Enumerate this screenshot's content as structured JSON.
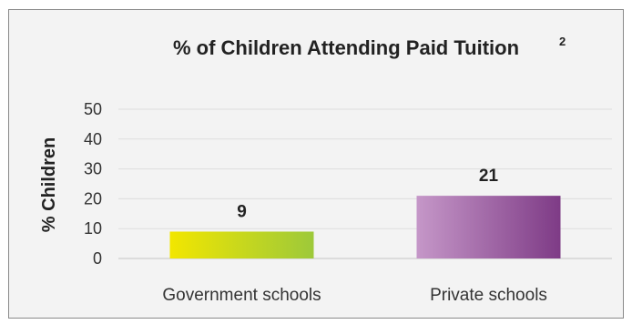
{
  "chart_data": {
    "type": "bar",
    "title": "% of Children Attending Paid Tuition",
    "title_superscript": "2",
    "xlabel": "",
    "ylabel": "% Children",
    "categories": [
      "Government schools",
      "Private schools"
    ],
    "values": [
      9,
      21
    ],
    "data_labels": [
      "9",
      "21"
    ],
    "ylim": [
      0,
      50
    ],
    "yticks": [
      "0",
      "10",
      "20",
      "30",
      "40",
      "50"
    ],
    "grid": true,
    "legend": "none",
    "colors": {
      "government_start": "#f2e600",
      "government_end": "#9dc93a",
      "private_start": "#c597c8",
      "private_end": "#7e3b86"
    }
  }
}
